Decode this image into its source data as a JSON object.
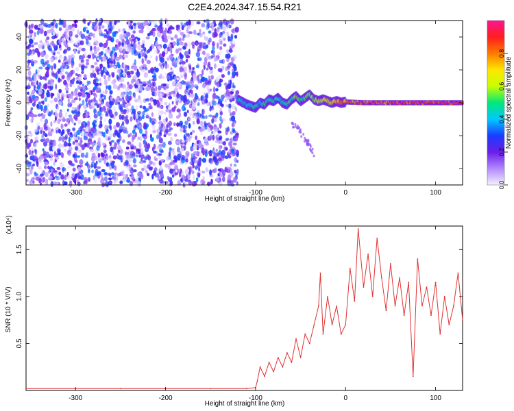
{
  "title": "C2E4.2024.347.15.54.R21",
  "chart_data": [
    {
      "type": "heatmap",
      "title": "",
      "xlabel": "Height of straight line (km)",
      "ylabel": "Frequency (Hz)",
      "xlim": [
        -355,
        130
      ],
      "ylim": [
        -50,
        50
      ],
      "xticks": [
        -300,
        -200,
        -100,
        0,
        100
      ],
      "yticks": [
        -40,
        -20,
        0,
        20,
        40
      ],
      "xtick_labels": [
        "-300",
        "-200",
        "-100",
        "0",
        "100"
      ],
      "ytick_labels": [
        "-40",
        "-20",
        "0",
        "20",
        "40"
      ],
      "colorbar": {
        "label": "Normalized spectral amplitude",
        "range": [
          0,
          1
        ],
        "ticks": [
          0.0,
          0.2,
          0.4,
          0.6,
          0.8
        ],
        "tick_labels": [
          "0.0",
          "0.2",
          "0.4",
          "0.6",
          "0.8"
        ],
        "colormap": [
          "#f4f0ff",
          "#b388ff",
          "#6a1ee8",
          "#1a3cff",
          "#00c8ff",
          "#00e87a",
          "#c8ff00",
          "#ffe600",
          "#ff7a00",
          "#ff1e1e",
          "#ff1493"
        ]
      },
      "noise_region_x": [
        -355,
        -120
      ],
      "ridge": {
        "x": [
          -120,
          -110,
          -100,
          -95,
          -90,
          -85,
          -80,
          -75,
          -70,
          -65,
          -60,
          -55,
          -50,
          -45,
          -40,
          -35,
          -30,
          -25,
          -20,
          -15,
          -10,
          -5,
          0,
          20,
          40,
          60,
          80,
          100,
          130
        ],
        "y": [
          2,
          -1,
          -3,
          0,
          -1,
          2,
          1,
          3,
          0,
          -1,
          2,
          4,
          1,
          3,
          5,
          2,
          1,
          2,
          1,
          0,
          1,
          0,
          0.5,
          0,
          0,
          0,
          0,
          0,
          0
        ],
        "amplitude": [
          0.45,
          0.45,
          0.5,
          0.45,
          0.5,
          0.45,
          0.5,
          0.5,
          0.45,
          0.5,
          0.5,
          0.55,
          0.5,
          0.55,
          0.6,
          0.6,
          0.65,
          0.65,
          0.7,
          0.75,
          0.75,
          0.8,
          0.85,
          0.88,
          0.9,
          0.9,
          0.92,
          0.95,
          0.95
        ]
      },
      "tail": {
        "x": [
          -60,
          -50,
          -40,
          -35
        ],
        "y": [
          -12,
          -18,
          -26,
          -32
        ],
        "amplitude": [
          0.1,
          0.08,
          0.06,
          0.05
        ]
      }
    },
    {
      "type": "line",
      "title": "",
      "xlabel": "Height of straight line (km)",
      "ylabel": "SNR (10 * V/V)",
      "y_multiplier": "(x10⁴)",
      "xlim": [
        -355,
        130
      ],
      "ylim": [
        0,
        1.75
      ],
      "xticks": [
        -300,
        -200,
        -100,
        0,
        100
      ],
      "yticks": [
        0.5,
        1.0,
        1.5
      ],
      "xtick_labels": [
        "-300",
        "-200",
        "-100",
        "0",
        "100"
      ],
      "ytick_labels": [
        "0.5",
        "1.0",
        "1.5"
      ],
      "color": "#e03030",
      "series": [
        {
          "x": [
            -355,
            -300,
            -250,
            -200,
            -150,
            -110,
            -100,
            -98,
            -95,
            -90,
            -85,
            -80,
            -75,
            -70,
            -65,
            -60,
            -55,
            -50,
            -45,
            -40,
            -35,
            -30,
            -28,
            -25,
            -20,
            -15,
            -10,
            -5,
            0,
            5,
            10,
            14,
            20,
            25,
            30,
            35,
            40,
            45,
            50,
            55,
            60,
            65,
            70,
            75,
            80,
            85,
            90,
            95,
            100,
            105,
            110,
            115,
            120,
            125,
            130
          ],
          "y": [
            0.02,
            0.02,
            0.02,
            0.02,
            0.02,
            0.02,
            0.03,
            0.1,
            0.25,
            0.15,
            0.3,
            0.2,
            0.35,
            0.25,
            0.4,
            0.3,
            0.55,
            0.35,
            0.6,
            0.5,
            0.7,
            0.9,
            1.25,
            0.6,
            1.0,
            0.7,
            0.9,
            0.6,
            0.7,
            1.3,
            0.95,
            1.72,
            1.1,
            1.45,
            1.0,
            1.62,
            1.2,
            0.85,
            1.35,
            0.9,
            1.2,
            0.8,
            1.15,
            0.15,
            1.4,
            0.9,
            1.1,
            0.8,
            1.15,
            0.6,
            1.0,
            0.7,
            0.9,
            1.25,
            0.75
          ]
        }
      ]
    }
  ]
}
